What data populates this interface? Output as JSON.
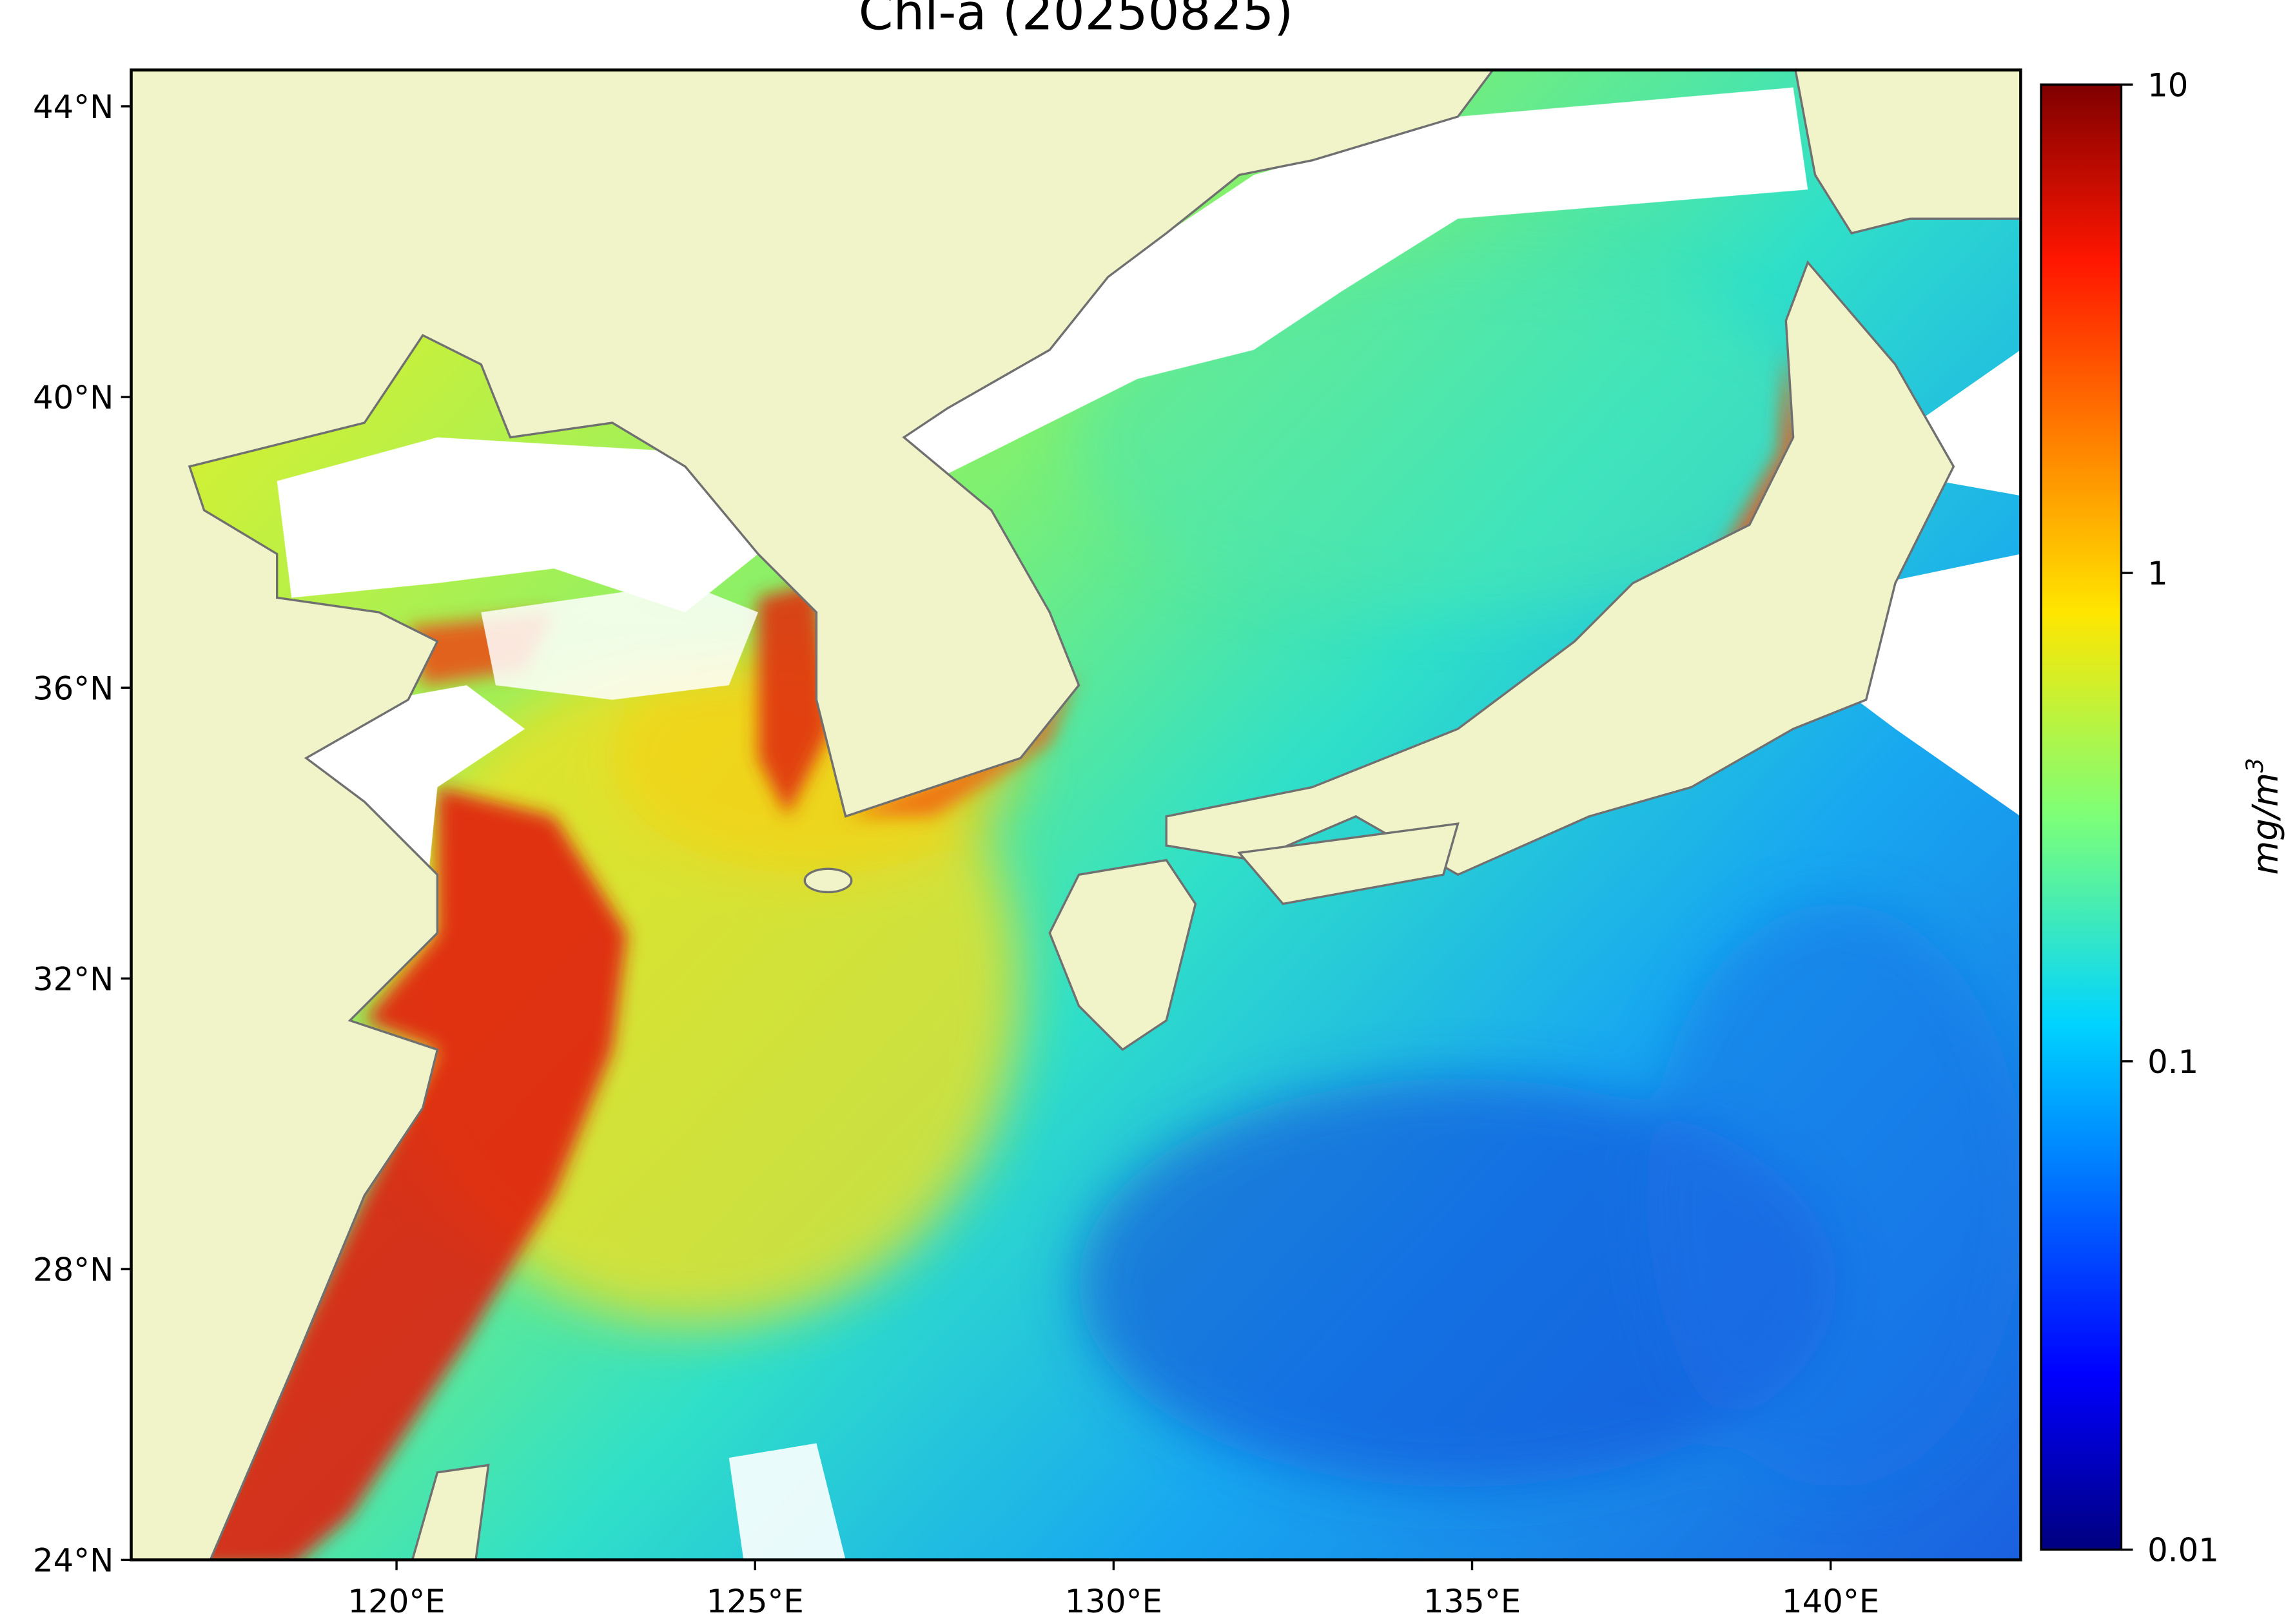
{
  "title": "Chl-a (20250825)",
  "xlim": [
    116.3,
    142.65
  ],
  "ylim": [
    24,
    44.5
  ],
  "xticks": [
    {
      "value": 120,
      "label": "120°E"
    },
    {
      "value": 125,
      "label": "125°E"
    },
    {
      "value": 130,
      "label": "130°E"
    },
    {
      "value": 135,
      "label": "135°E"
    },
    {
      "value": 140,
      "label": "140°E"
    }
  ],
  "yticks": [
    {
      "value": 24,
      "label": "24°N"
    },
    {
      "value": 28,
      "label": "28°N"
    },
    {
      "value": 32,
      "label": "32°N"
    },
    {
      "value": 36,
      "label": "36°N"
    },
    {
      "value": 40,
      "label": "40°N"
    },
    {
      "value": 44,
      "label": "44°N"
    }
  ],
  "colorbar": {
    "lim": [
      0.01,
      10
    ],
    "scale": "log",
    "ticks": [
      0.01,
      0.1,
      1,
      10
    ],
    "label": "mg/m",
    "label_sup": "3"
  }
}
